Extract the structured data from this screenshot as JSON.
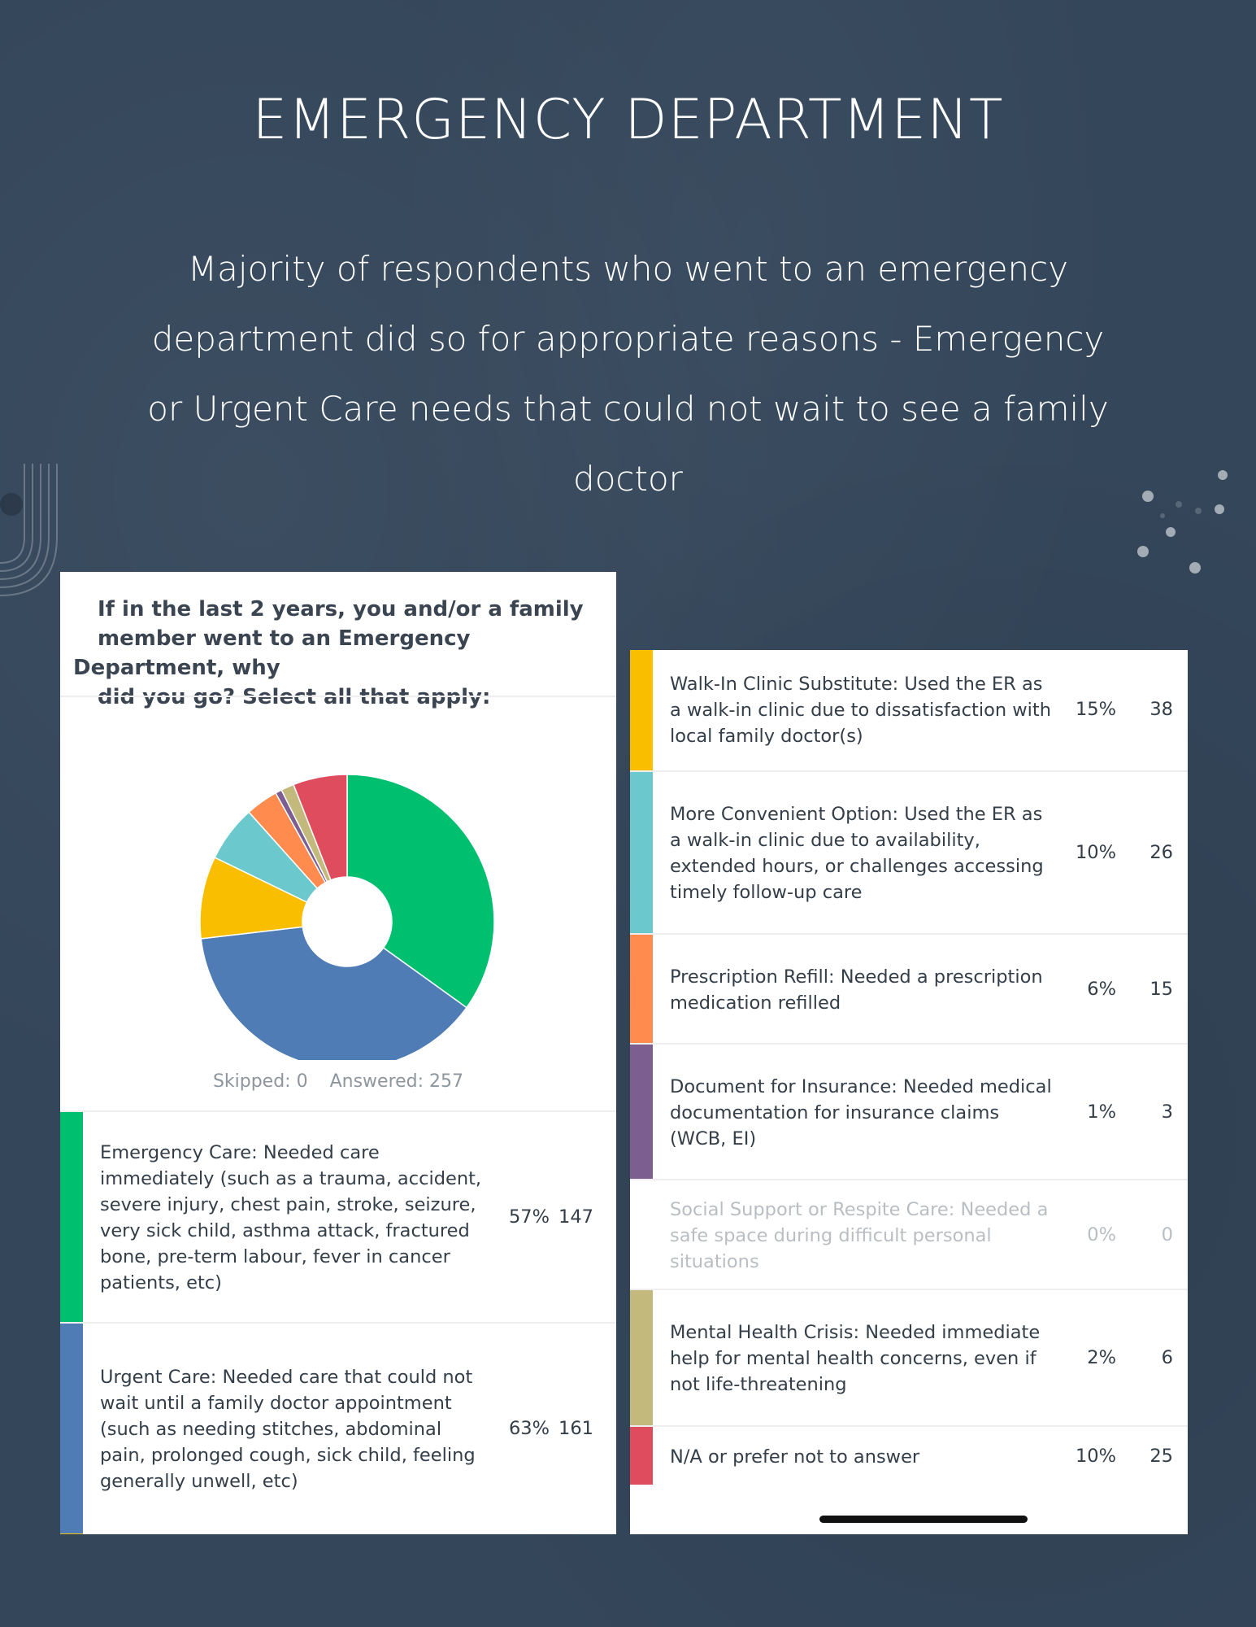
{
  "header": {
    "title": "EMERGENCY DEPARTMENT",
    "subtitle_lines": [
      "Majority of respondents who went to an emergency",
      "department did so for appropriate reasons -  Emergency",
      "or Urgent Care needs that could not wait to see a family",
      "doctor"
    ]
  },
  "survey": {
    "question_lines": [
      "If in the last 2 years, you and/or a family",
      "member went to an Emergency Department, why",
      "did you go? Select all that apply:"
    ],
    "skipped_label": "Skipped: 0",
    "answered_label": "Answered: 257"
  },
  "chart_data": {
    "type": "pie",
    "title": "If in the last 2 years, you and/or a family member went to an Emergency Department, why did you go? Select all that apply:",
    "donut": true,
    "skipped": 0,
    "answered": 257,
    "categories": [
      {
        "label_lines": [
          "Emergency Care: Needed care",
          "immediately (such as a trauma, accident,",
          "severe injury, chest pain, stroke, seizure,",
          "very sick child, asthma attack, fractured",
          "bone, pre-term labour, fever in cancer",
          "patients, etc)"
        ],
        "percent": "57%",
        "count": 147,
        "color": "#00bf6f",
        "muted": false
      },
      {
        "label_lines": [
          "Urgent Care: Needed care that could not",
          "wait until a family doctor appointment",
          "(such as needing stitches, abdominal",
          "pain, prolonged cough, sick child, feeling",
          "generally unwell, etc)"
        ],
        "percent": "63%",
        "count": 161,
        "color": "#507cb6",
        "muted": false
      },
      {
        "label_lines": [
          "Walk-In Clinic Substitute: Used the ER as",
          "a walk-in clinic due to dissatisfaction with",
          "local family doctor(s)"
        ],
        "percent": "15%",
        "count": 38,
        "color": "#f9be00",
        "muted": false
      },
      {
        "label_lines": [
          "More Convenient Option: Used the ER as",
          "a walk-in clinic due to availability,",
          "extended hours, or challenges accessing",
          "timely follow-up care"
        ],
        "percent": "10%",
        "count": 26,
        "color": "#6bc8cd",
        "muted": false
      },
      {
        "label_lines": [
          "Prescription Refill: Needed a prescription",
          "medication refilled"
        ],
        "percent": "6%",
        "count": 15,
        "color": "#ff8b4f",
        "muted": false
      },
      {
        "label_lines": [
          "Document for Insurance: Needed medical",
          "documentation for insurance claims",
          "(WCB, EI)"
        ],
        "percent": "1%",
        "count": 3,
        "color": "#7d5e90",
        "muted": false
      },
      {
        "label_lines": [
          "Social Support or Respite Care: Needed a",
          "safe space during difficult personal",
          "situations"
        ],
        "percent": "0%",
        "count": 0,
        "color": "#d25f90",
        "muted": true
      },
      {
        "label_lines": [
          "Mental Health Crisis: Needed immediate",
          "help for mental health concerns, even if",
          "not life-threatening"
        ],
        "percent": "2%",
        "count": 6,
        "color": "#c4b97d",
        "muted": false
      },
      {
        "label_lines": [
          "N/A or prefer not to answer"
        ],
        "percent": "10%",
        "count": 25,
        "color": "#de4c5e",
        "muted": false
      }
    ]
  }
}
